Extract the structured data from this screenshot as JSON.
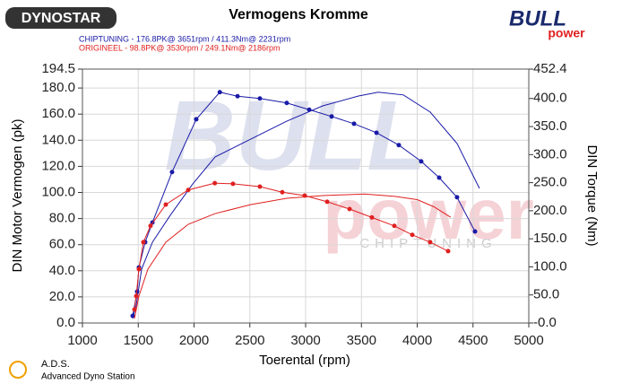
{
  "chart_data": {
    "type": "line",
    "title": "Vermogens Kromme",
    "legend": [
      {
        "text": "CHIPTUNING  - 176.8PK@ 3651rpm / 411.3Nm@ 2231rpm",
        "color": "#1a1aa8"
      },
      {
        "text": "ORIGINEEL  - 98.8PK@ 3530rpm / 249.1Nm@ 2186rpm",
        "color": "#e02020"
      }
    ],
    "x_label": "Toerental (rpm)",
    "y_label": "DIN Motor Vermogen (pk)",
    "y2_label": "DIN Torque (Nm)",
    "xlim": [
      1000,
      5000
    ],
    "xticks": [
      1000,
      1500,
      2000,
      2500,
      3000,
      3500,
      4000,
      4500,
      5000
    ],
    "ylim": [
      0,
      194.5
    ],
    "yticks": [
      {
        "value": 0,
        "label": "0.0"
      },
      {
        "value": 20,
        "label": "20.0"
      },
      {
        "value": 40,
        "label": "40.0"
      },
      {
        "value": 60,
        "label": "60.0"
      },
      {
        "value": 80,
        "label": "80.0"
      },
      {
        "value": 100,
        "label": "100.0"
      },
      {
        "value": 120,
        "label": "120.0"
      },
      {
        "value": 140,
        "label": "140.0"
      },
      {
        "value": 160,
        "label": "160.0"
      },
      {
        "value": 180,
        "label": "180.0"
      },
      {
        "value": 194.5,
        "label": "194.5"
      }
    ],
    "y2lim": [
      0,
      452.4
    ],
    "y2ticks": [
      {
        "value": 0,
        "label": "-0.0"
      },
      {
        "value": 50,
        "label": "50.0"
      },
      {
        "value": 100,
        "label": "100.0"
      },
      {
        "value": 150,
        "label": "150.0"
      },
      {
        "value": 200,
        "label": "200.0"
      },
      {
        "value": 250,
        "label": "250.0"
      },
      {
        "value": 300,
        "label": "300.0"
      },
      {
        "value": 350,
        "label": "350.0"
      },
      {
        "value": 400,
        "label": "400.0"
      },
      {
        "value": 452.4,
        "label": "452.4"
      }
    ],
    "grid": true,
    "series": [
      {
        "name": "CHIPTUNING",
        "color": "#1a1aa8",
        "markers": true,
        "axis": "y2",
        "x": [
          1450,
          1490,
          1506,
          1562,
          1627,
          1803,
          2020,
          2231,
          2390,
          2590,
          2831,
          3032,
          3233,
          3434,
          3635,
          3835,
          4036,
          4197,
          4357,
          4518
        ],
        "values": [
          12.8,
          56,
          99,
          144,
          179,
          269,
          363,
          411.3,
          404,
          400,
          392,
          380,
          368,
          355,
          339,
          317,
          288,
          259,
          224,
          163
        ]
      },
      {
        "name": "CHIPTUNING",
        "color": "#1a1aa8",
        "markers": false,
        "x": [
          1450,
          1482,
          1530,
          1627,
          1787,
          1988,
          2189,
          2510,
          2831,
          3153,
          3474,
          3651,
          3876,
          4116,
          4357,
          4558
        ],
        "values": [
          3.4,
          13.7,
          41.2,
          61.9,
          82.5,
          106.5,
          127.2,
          140.9,
          154.6,
          166.3,
          173.9,
          176.8,
          174.7,
          161.6,
          137.5,
          103.1
        ]
      },
      {
        "name": "ORIGINEEL",
        "color": "#e02020",
        "markers": true,
        "axis": "y2",
        "x": [
          1466,
          1482,
          1506,
          1546,
          1610,
          1747,
          1948,
          2186,
          2349,
          2590,
          2791,
          2992,
          3193,
          3394,
          3594,
          3795,
          3956,
          4116,
          4277
        ],
        "values": [
          24,
          48,
          96,
          144,
          173,
          211,
          237,
          249.1,
          248,
          243,
          233,
          227,
          216,
          203,
          188,
          173,
          157,
          144,
          128
        ]
      },
      {
        "name": "ORIGINEEL",
        "color": "#e02020",
        "markers": false,
        "x": [
          1466,
          1506,
          1586,
          1747,
          1948,
          2189,
          2510,
          2831,
          3153,
          3530,
          3800,
          4000,
          4150,
          4300
        ],
        "values": [
          3.4,
          20.6,
          41.2,
          61.9,
          75.6,
          83.8,
          90.7,
          95.5,
          97.6,
          98.8,
          97.0,
          94.5,
          89.0,
          81.0
        ]
      }
    ]
  },
  "logos": {
    "dynostar": "DYNOSTAR",
    "bull": "BULL",
    "power": "power",
    "ads": "A.D.S.",
    "ads_full": "Advanced Dyno Station",
    "watermark_bull": "BULL",
    "watermark_power": "power",
    "watermark_sub": "CHIPTUNING"
  }
}
